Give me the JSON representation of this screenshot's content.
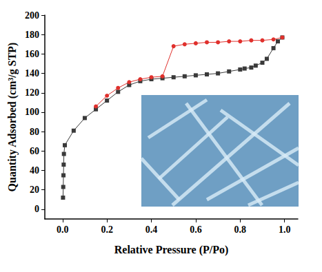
{
  "chart_data": {
    "type": "scatter",
    "x_label": "Relative Pressure (P/Po)",
    "y_label": "Quantity Adsorbed (cm³/g STP)",
    "xlim": [
      -0.08,
      1.06
    ],
    "xticks": [
      {
        "value": 0,
        "label": "0.0"
      },
      0.2,
      0.4,
      0.6,
      0.8,
      {
        "value": 1,
        "label": "1.0"
      }
    ],
    "ylim": [
      -10,
      200
    ],
    "yticks": [
      0,
      20,
      40,
      60,
      80,
      100,
      120,
      140,
      160,
      180,
      200
    ],
    "grid": false,
    "series": [
      {
        "color": "#3a3a3a",
        "marker": "square",
        "line_style": "solid",
        "x": [
          0.002,
          0.003,
          0.004,
          0.005,
          0.006,
          0.01,
          0.05,
          0.1,
          0.15,
          0.2,
          0.25,
          0.3,
          0.35,
          0.4,
          0.45,
          0.5,
          0.55,
          0.6,
          0.65,
          0.7,
          0.75,
          0.8,
          0.82,
          0.85,
          0.87,
          0.9,
          0.92,
          0.95,
          0.97,
          0.99
        ],
        "values": [
          12,
          23,
          35,
          46,
          57,
          66,
          81,
          94,
          103,
          112,
          121,
          128,
          132,
          134,
          135,
          136,
          137,
          138,
          139,
          140,
          142,
          144,
          145,
          146,
          148,
          151,
          155,
          166,
          173,
          177
        ]
      },
      {
        "color": "#e0302c",
        "marker": "circle",
        "line_style": "solid",
        "x": [
          0.99,
          0.95,
          0.9,
          0.85,
          0.8,
          0.75,
          0.7,
          0.65,
          0.6,
          0.55,
          0.5,
          0.45,
          0.4,
          0.35,
          0.3,
          0.25,
          0.2,
          0.15
        ],
        "values": [
          177,
          175,
          174,
          174,
          173,
          173,
          172,
          172,
          171,
          170,
          168,
          137,
          136,
          134,
          131,
          125,
          117,
          106
        ]
      }
    ]
  }
}
